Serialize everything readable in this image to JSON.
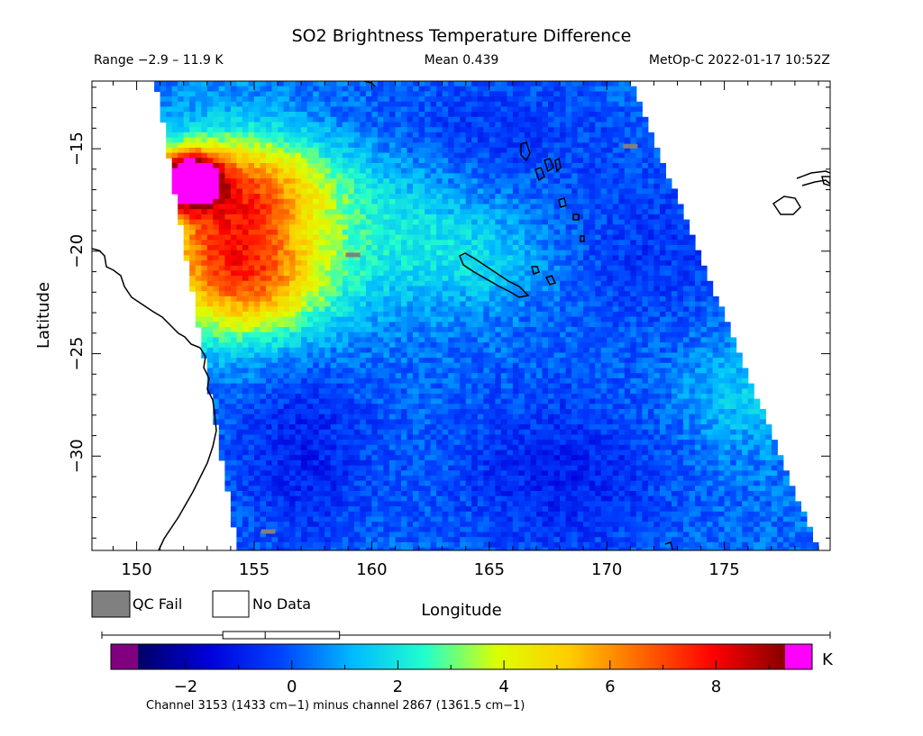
{
  "title": "SO2 Brightness Temperature Difference",
  "subtitle": {
    "range": "Range −2.9 – 11.9 K",
    "mean": "Mean 0.439",
    "satellite": "MetOp-C 2022-01-17 10:52Z"
  },
  "axes": {
    "x_label": "Longitude",
    "y_label": "Latitude",
    "x_ticks": [
      150,
      155,
      160,
      165,
      170,
      175
    ],
    "x_tick_labels": [
      "150",
      "155",
      "160",
      "165",
      "170",
      "175"
    ],
    "y_ticks": [
      -15,
      -20,
      -25,
      -30
    ],
    "y_tick_labels": [
      "−15",
      "−20",
      "−25",
      "−30"
    ],
    "lon_range": [
      148.1,
      179.5
    ],
    "lat_range": [
      -34.6,
      -11.7
    ]
  },
  "legend": {
    "qc_fail": "QC Fail",
    "no_data": "No Data",
    "qc_fail_color": "#808080",
    "no_data_color": "#ffffff"
  },
  "colorbar": {
    "min": -2.9,
    "max": 9.3,
    "ticks": [
      -2,
      0,
      2,
      4,
      6,
      8
    ],
    "tick_labels": [
      "−2",
      "0",
      "2",
      "4",
      "6",
      "8"
    ],
    "unit": "K",
    "underflow_color": "#800080",
    "overflow_color": "#ff00ff",
    "stops": [
      "#000066",
      "#0000dd",
      "#0044ff",
      "#00bbff",
      "#22ffcc",
      "#ddff00",
      "#ffcc00",
      "#ff6600",
      "#ff0000",
      "#880000"
    ],
    "box_whisker": {
      "min": -2.9,
      "q1": -1.3,
      "median": -0.5,
      "q3": 0.9,
      "max": 9.3
    }
  },
  "footnote": "Channel 3153 (1433 cm−1) minus channel 2867 (1361.5 cm−1)",
  "map": {
    "background_value": 0.3,
    "features": [
      {
        "name": "plume-core",
        "lon": 152.2,
        "lat": -16.5,
        "value": 10.5,
        "sx": 0.9,
        "sy": 0.9
      },
      {
        "name": "plume-main",
        "lon": 154.0,
        "lat": -19.0,
        "value": 6.2,
        "sx": 2.5,
        "sy": 2.9
      },
      {
        "name": "plume-south",
        "lon": 155.0,
        "lat": -22.0,
        "value": 2.8,
        "sx": 2.5,
        "sy": 1.8
      },
      {
        "name": "plume-north",
        "lon": 155.5,
        "lat": -16.5,
        "value": 2.2,
        "sx": 2.5,
        "sy": 1.5
      },
      {
        "name": "plume-fringe",
        "lon": 160.5,
        "lat": -19.0,
        "value": 1.6,
        "sx": 3.0,
        "sy": 2.5
      },
      {
        "name": "plume-east",
        "lon": 165.0,
        "lat": -20.5,
        "value": 1.0,
        "sx": 2.0,
        "sy": 1.5
      },
      {
        "name": "east-edge-warm",
        "lon": 176.0,
        "lat": -27.0,
        "value": 1.2,
        "sx": 2.0,
        "sy": 2.0
      },
      {
        "name": "southwest-cold",
        "lon": 157.0,
        "lat": -30.0,
        "value": -1.2,
        "sx": 2.2,
        "sy": 3.5
      },
      {
        "name": "south-cold",
        "lon": 168.0,
        "lat": -31.0,
        "value": -1.2,
        "sx": 3.5,
        "sy": 3.0
      },
      {
        "name": "north-cold",
        "lon": 165.0,
        "lat": -14.0,
        "value": -0.8,
        "sx": 4.0,
        "sy": 2.0
      },
      {
        "name": "east-cold",
        "lon": 172.0,
        "lat": -20.0,
        "value": -0.8,
        "sx": 3.0,
        "sy": 3.0
      }
    ],
    "qc_fail_pixels": [
      {
        "lon": 171.0,
        "lat": -14.9
      },
      {
        "lon": 155.6,
        "lat": -33.7
      },
      {
        "lon": 159.2,
        "lat": -20.2
      }
    ]
  }
}
